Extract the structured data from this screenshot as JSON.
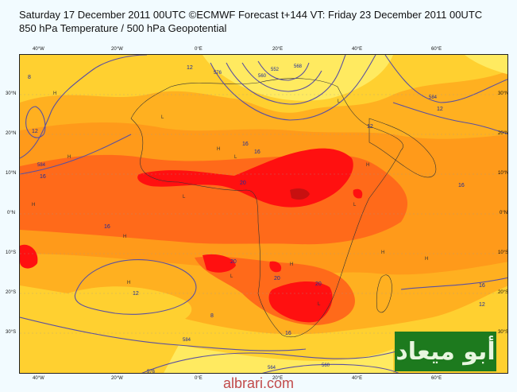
{
  "header": {
    "line1": "Saturday 17 December 2011 00UTC ©ECMWF Forecast t+144 VT: Friday 23 December 2011 00UTC",
    "line2": "850 hPa Temperature / 500 hPa Geopotential"
  },
  "axes": {
    "top_lon": [
      "40°W",
      "20°W",
      "0°E",
      "20°E",
      "40°E",
      "60°E"
    ],
    "bottom_lon": [
      "40°W",
      "20°W",
      "0°E",
      "20°E",
      "40°E",
      "60°E"
    ],
    "left_lat": [
      "30°N",
      "20°N",
      "10°N",
      "0°N",
      "10°S",
      "20°S",
      "30°S"
    ],
    "right_lat": [
      "30°N",
      "20°N",
      "10°N",
      "0°N",
      "10°S",
      "20°S",
      "30°S"
    ]
  },
  "temp_labels": [
    "12",
    "12",
    "16",
    "16",
    "20",
    "20",
    "20",
    "16",
    "16",
    "12",
    "12",
    "8",
    "12",
    "16",
    "16",
    "20",
    "16",
    "12",
    "8"
  ],
  "geo_labels": [
    "552",
    "560",
    "576",
    "584",
    "584",
    "584",
    "564",
    "568",
    "560",
    "576"
  ],
  "marker_letters": [
    "H",
    "L",
    "H",
    "H",
    "L",
    "L",
    "H",
    "L",
    "L",
    "H",
    "H",
    "L",
    "H",
    "H",
    "L",
    "H",
    "H"
  ],
  "watermark_text": "أبو ميعاد",
  "site_text": "albrari.com",
  "colors": {
    "t8": "#ffea60",
    "t12": "#ffd030",
    "t16": "#ffb020",
    "t18": "#ff9a1a",
    "t20": "#ff6a1a",
    "t24": "#ff1010",
    "t28": "#c81010",
    "geo_line": "#5a50a0"
  }
}
